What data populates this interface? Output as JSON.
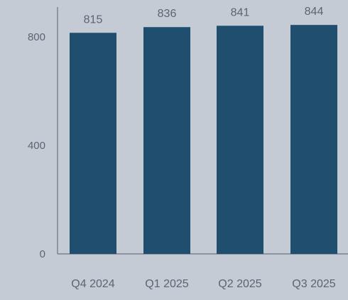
{
  "chart_data": {
    "type": "bar",
    "title": "",
    "xlabel": "",
    "ylabel": "",
    "categories": [
      "Q4 2024",
      "Q1 2025",
      "Q2 2025",
      "Q3 2025"
    ],
    "values": [
      815,
      836,
      841,
      844
    ],
    "data_labels": [
      "815",
      "836",
      "841",
      "844"
    ],
    "y_ticks": [
      0,
      400,
      800
    ],
    "ylim": [
      0,
      900
    ],
    "grid": false,
    "legend": "none",
    "colors": {
      "background": "#c5cbd4",
      "bar": "#1f4e6e",
      "text": "#5b6470",
      "axis": "#6b7380"
    }
  }
}
